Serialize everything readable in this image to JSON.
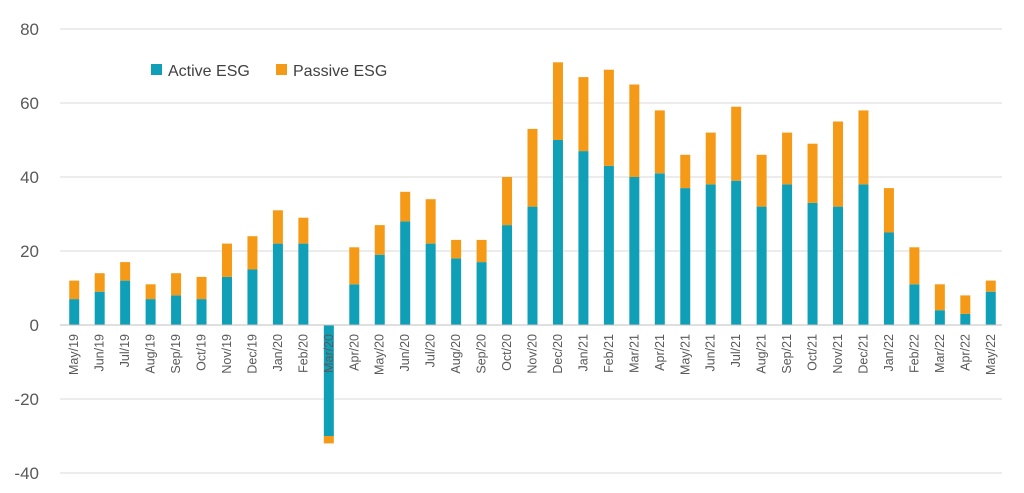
{
  "chart_data": {
    "type": "bar",
    "stacked": true,
    "title": "",
    "xlabel": "",
    "ylabel": "",
    "ylim": [
      -40,
      80
    ],
    "yticks": [
      -40,
      -20,
      0,
      20,
      40,
      60,
      80
    ],
    "grid": true,
    "legend_position": "top-left",
    "categories": [
      "May/19",
      "Jun/19",
      "Jul/19",
      "Aug/19",
      "Sep/19",
      "Oct/19",
      "Nov/19",
      "Dec/19",
      "Jan/20",
      "Feb/20",
      "Mar/20",
      "Apr/20",
      "May/20",
      "Jun/20",
      "Jul/20",
      "Aug/20",
      "Sep/20",
      "Oct/20",
      "Nov/20",
      "Dec/20",
      "Jan/21",
      "Feb/21",
      "Mar/21",
      "Apr/21",
      "May/21",
      "Jun/21",
      "Jul/21",
      "Aug/21",
      "Sep/21",
      "Oct/21",
      "Nov/21",
      "Dec/21",
      "Jan/22",
      "Feb/22",
      "Mar/22",
      "Apr/22",
      "May/22"
    ],
    "series": [
      {
        "name": "Active ESG",
        "color": "#0fa0b8",
        "values": [
          7,
          9,
          12,
          7,
          8,
          7,
          13,
          15,
          22,
          22,
          -30,
          11,
          19,
          28,
          22,
          18,
          17,
          27,
          32,
          50,
          47,
          43,
          40,
          41,
          37,
          38,
          39,
          32,
          38,
          33,
          32,
          38,
          25,
          11,
          4,
          3,
          9
        ]
      },
      {
        "name": "Passive ESG",
        "color": "#f59a17",
        "values": [
          5,
          5,
          5,
          4,
          6,
          6,
          9,
          9,
          9,
          7,
          -2,
          10,
          8,
          8,
          12,
          5,
          6,
          13,
          21,
          21,
          20,
          26,
          25,
          17,
          9,
          14,
          20,
          14,
          14,
          16,
          23,
          20,
          12,
          10,
          7,
          5,
          3
        ]
      }
    ]
  }
}
